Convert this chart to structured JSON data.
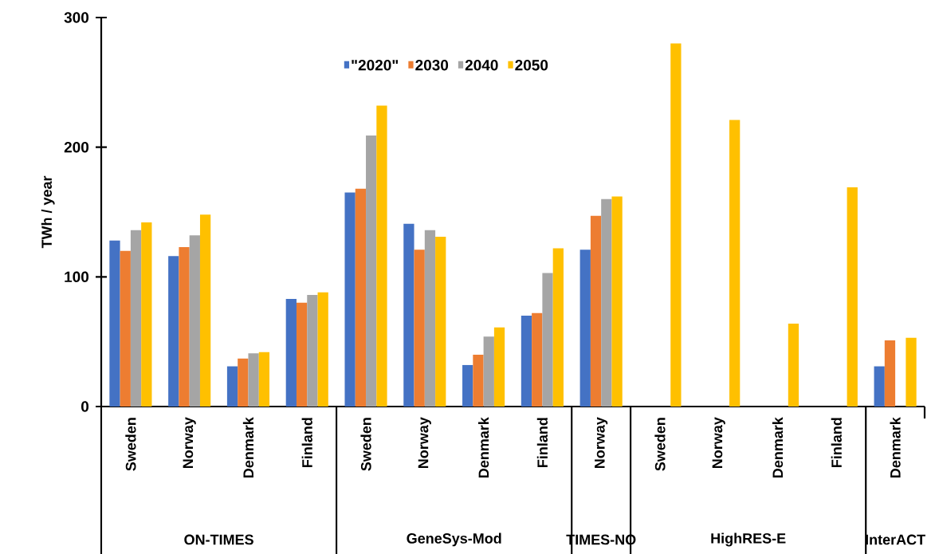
{
  "chart_data": {
    "type": "bar",
    "ylabel": "TWh / year",
    "categories": [
      "Sweden",
      "Norway",
      "Denmark",
      "Finland",
      "Sweden",
      "Norway",
      "Denmark",
      "Finland",
      "Norway",
      "Sweden",
      "Norway",
      "Denmark",
      "Finland",
      "Denmark"
    ],
    "series": [
      {
        "name": "\"2020\"",
        "color": "#4472c4",
        "values": [
          128,
          116,
          31,
          83,
          165,
          141,
          32,
          70,
          121,
          null,
          null,
          null,
          null,
          31
        ]
      },
      {
        "name": "2030",
        "color": "#ed7d31",
        "values": [
          120,
          123,
          37,
          80,
          168,
          121,
          40,
          72,
          147,
          null,
          null,
          null,
          null,
          51
        ]
      },
      {
        "name": "2040",
        "color": "#a5a5a5",
        "values": [
          136,
          132,
          41,
          86,
          209,
          136,
          54,
          103,
          160,
          null,
          null,
          null,
          null,
          null
        ]
      },
      {
        "name": "2050",
        "color": "#ffc000",
        "values": [
          142,
          148,
          42,
          88,
          232,
          131,
          61,
          122,
          162,
          280,
          221,
          64,
          169,
          53
        ]
      }
    ],
    "ylim": [
      0,
      300
    ],
    "yticks": [
      0,
      100,
      200,
      300
    ],
    "legend": "top",
    "annotations": [
      "ON-TIMES",
      "GeneSys-Mod",
      "TIMES-NO",
      "HighRES-E",
      "InterACT"
    ]
  }
}
